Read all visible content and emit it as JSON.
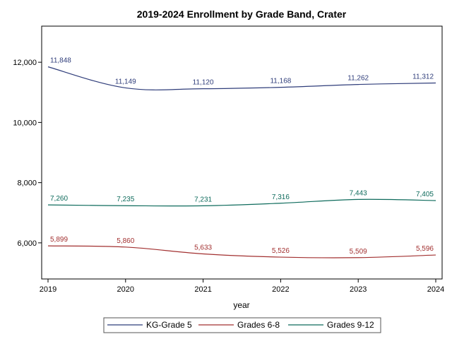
{
  "chart_data": {
    "type": "line",
    "title": "2019-2024 Enrollment by Grade Band, Crater",
    "xlabel": "year",
    "ylabel": "",
    "x": [
      2019,
      2020,
      2021,
      2022,
      2023,
      2024
    ],
    "xlim": [
      2019,
      2024
    ],
    "ylim": [
      4800,
      13200
    ],
    "yticks": [
      6000,
      8000,
      10000,
      12000
    ],
    "ytick_labels": [
      "6,000",
      "8,000",
      "10,000",
      "12,000"
    ],
    "grid": false,
    "legend_position": "bottom",
    "series": [
      {
        "name": "KG-Grade 5",
        "color": "#2f3d7a",
        "values": [
          11848,
          11149,
          11120,
          11168,
          11262,
          11312
        ],
        "labels": [
          "11,848",
          "11,149",
          "11,120",
          "11,168",
          "11,262",
          "11,312"
        ]
      },
      {
        "name": "Grades 6-8",
        "color": "#a23030",
        "values": [
          5899,
          5860,
          5633,
          5526,
          5509,
          5596
        ],
        "labels": [
          "5,899",
          "5,860",
          "5,633",
          "5,526",
          "5,509",
          "5,596"
        ]
      },
      {
        "name": "Grades 9-12",
        "color": "#0e6b5c",
        "values": [
          7260,
          7235,
          7231,
          7316,
          7443,
          7405
        ],
        "labels": [
          "7,260",
          "7,235",
          "7,231",
          "7,316",
          "7,443",
          "7,405"
        ]
      }
    ]
  }
}
